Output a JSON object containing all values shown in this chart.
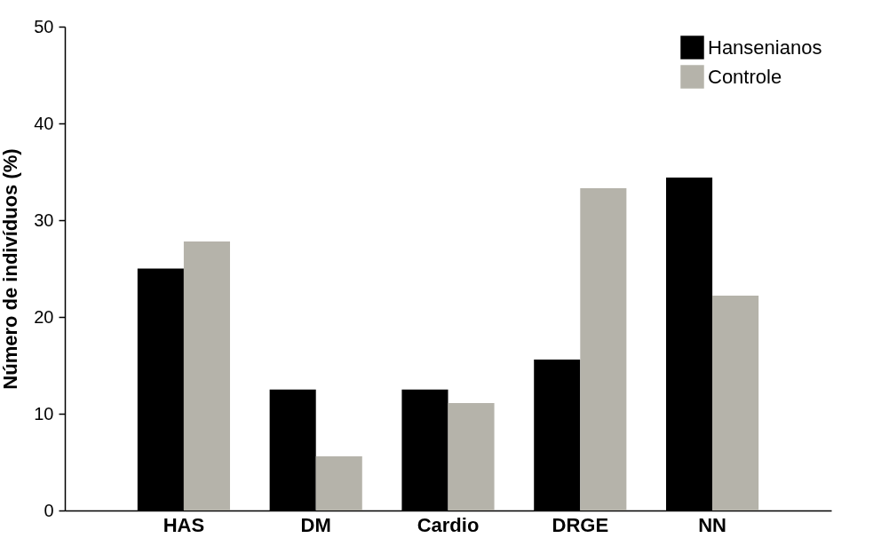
{
  "chart_data": {
    "type": "bar",
    "ylabel": "Número de indivíduos (%)",
    "categories": [
      "HAS",
      "DM",
      "Cardio",
      "DRGE",
      "NN"
    ],
    "series": [
      {
        "name": "Hansenianos",
        "color": "#000000",
        "values": [
          25,
          12.5,
          12.5,
          15.6,
          34.4
        ]
      },
      {
        "name": "Controle",
        "color": "#b5b3aa",
        "values": [
          27.8,
          5.6,
          11.1,
          33.3,
          22.2
        ]
      }
    ],
    "ylim": [
      0,
      50
    ],
    "yticks": [
      0,
      10,
      20,
      30,
      40,
      50
    ],
    "grid": false,
    "legend": "top right"
  }
}
